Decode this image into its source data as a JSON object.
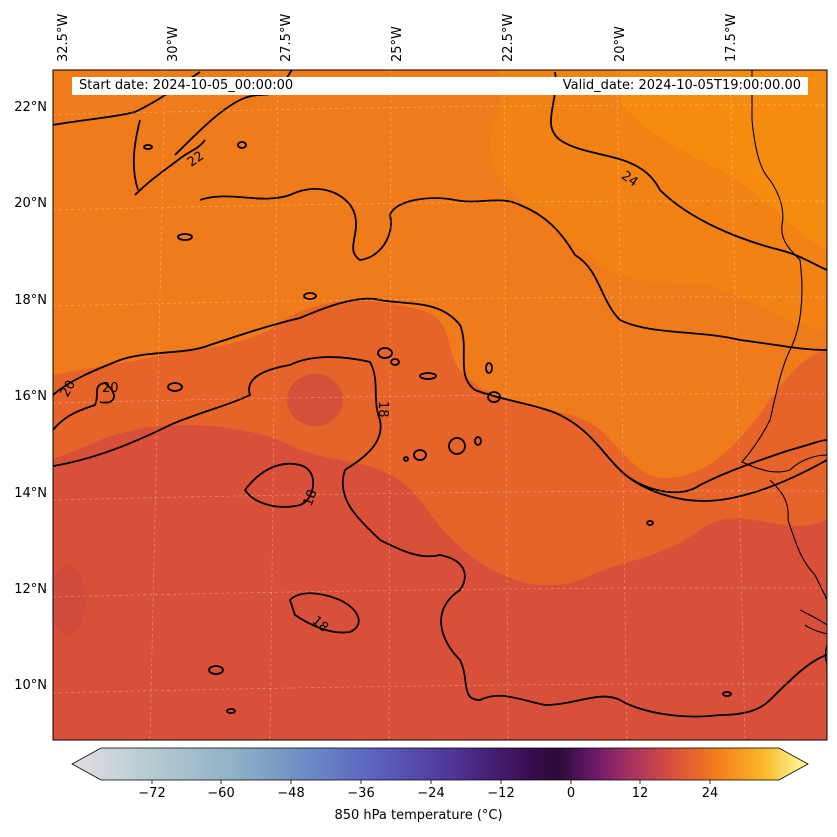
{
  "map": {
    "start_date": "Start date: 2024-10-05_00:00:00",
    "valid_date": "Valid_date: 2024-10-05T19:00:00.00",
    "lon_labels": [
      "32.5°W",
      "30°W",
      "27.5°W",
      "25°W",
      "22.5°W",
      "20°W",
      "17.5°W"
    ],
    "lat_labels": [
      "22°N",
      "20°N",
      "18°N",
      "16°N",
      "14°N",
      "12°N",
      "10°N"
    ],
    "contour_labels": [
      "22",
      "24",
      "20",
      "20",
      "18",
      "18",
      "18"
    ],
    "field": "850 hPa temperature",
    "contour_levels": [
      18,
      20,
      22,
      24
    ]
  },
  "colorbar": {
    "label": "850 hPa temperature ($^\\circ$C)",
    "label_display": "850 hPa temperature (°C)",
    "ticks": [
      "−72",
      "−60",
      "−48",
      "−36",
      "−24",
      "−12",
      "0",
      "12",
      "24"
    ],
    "colormap": "twilight-inferno",
    "colors": {
      "warm_land": "#f07b1a",
      "cool_zone": "#d9503a",
      "hot_zone": "#f78a10"
    }
  }
}
